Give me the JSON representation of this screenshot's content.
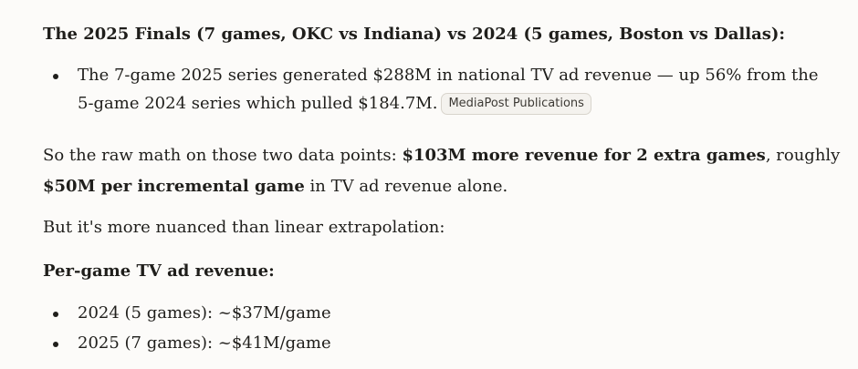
{
  "section1": {
    "heading": "The 2025 Finals (7 games, OKC vs Indiana) vs 2024 (5 games, Boston vs Dallas):",
    "bullet": {
      "line1": "The 7-game 2025 series generated $288M in national TV ad revenue — up 56% from the",
      "line2": "5-game 2024 series which pulled $184.7M.",
      "citation": "MediaPost Publications"
    }
  },
  "paragraph1": {
    "line1_prefix": "So the raw math on those two data points: ",
    "line1_bold": "$103M more revenue for 2 extra games",
    "line1_suffix": ", roughly",
    "line2_bold": "$50M per incremental game",
    "line2_suffix": " in TV ad revenue alone."
  },
  "paragraph2": {
    "text": "But it's more nuanced than linear extrapolation:"
  },
  "section2": {
    "heading": "Per-game TV ad revenue:",
    "bullets": [
      "2024 (5 games): ~$37M/game",
      "2025 (7 games): ~$41M/game"
    ]
  }
}
